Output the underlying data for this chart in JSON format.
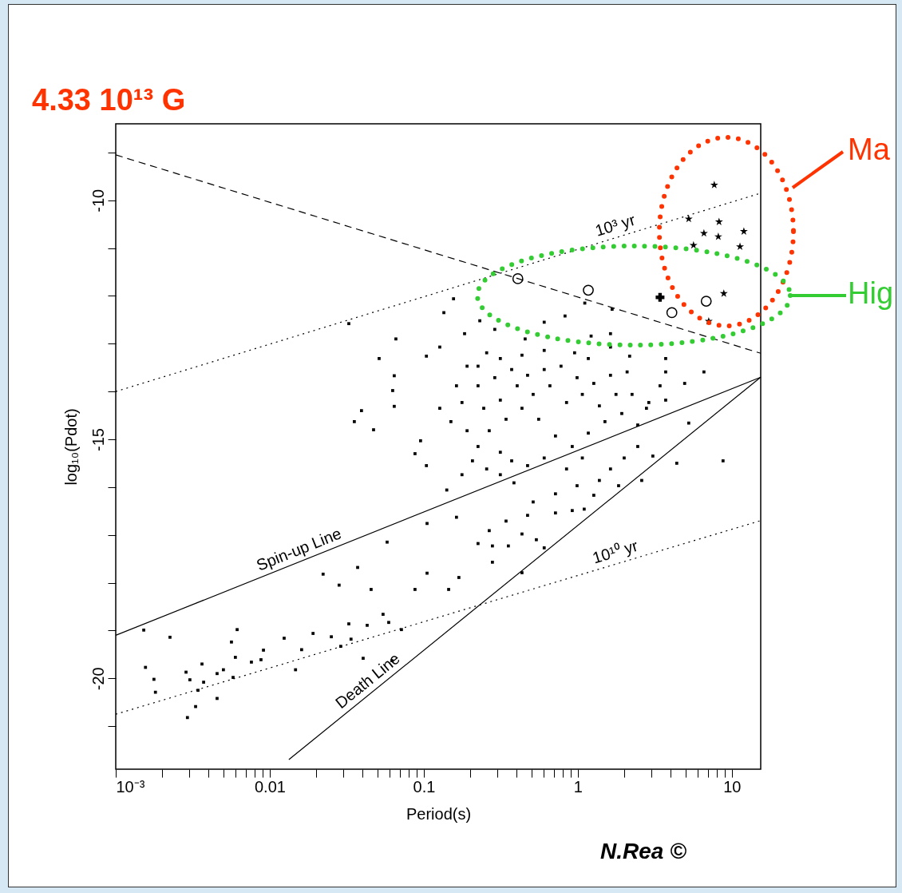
{
  "chart_data": {
    "type": "scatter",
    "xlabel": "Period(s)",
    "ylabel": "log₁₀(Pdot)",
    "log": "x",
    "xlim": [
      0.001,
      15.4
    ],
    "ylim": [
      -21.9,
      -8.4
    ],
    "xticks": [
      {
        "value": 0.001,
        "label": "10⁻³"
      },
      {
        "value": 0.002,
        "label": null
      },
      {
        "value": 0.003,
        "label": null
      },
      {
        "value": 0.004,
        "label": null
      },
      {
        "value": 0.005,
        "label": null
      },
      {
        "value": 0.006,
        "label": null
      },
      {
        "value": 0.007,
        "label": null
      },
      {
        "value": 0.008,
        "label": null
      },
      {
        "value": 0.009,
        "label": null
      },
      0.01,
      {
        "value": 0.02,
        "label": null
      },
      {
        "value": 0.03,
        "label": null
      },
      {
        "value": 0.04,
        "label": null
      },
      {
        "value": 0.05,
        "label": null
      },
      {
        "value": 0.06,
        "label": null
      },
      {
        "value": 0.07,
        "label": null
      },
      {
        "value": 0.08,
        "label": null
      },
      {
        "value": 0.09,
        "label": null
      },
      0.1,
      {
        "value": 0.2,
        "label": null
      },
      {
        "value": 0.3,
        "label": null
      },
      {
        "value": 0.4,
        "label": null
      },
      {
        "value": 0.5,
        "label": null
      },
      {
        "value": 0.6,
        "label": null
      },
      {
        "value": 0.7,
        "label": null
      },
      {
        "value": 0.8,
        "label": null
      },
      {
        "value": 0.9,
        "label": null
      },
      1,
      {
        "value": 2,
        "label": null
      },
      {
        "value": 3,
        "label": null
      },
      {
        "value": 4,
        "label": null
      },
      {
        "value": 5,
        "label": null
      },
      {
        "value": 6,
        "label": null
      },
      {
        "value": 7,
        "label": null
      },
      {
        "value": 8,
        "label": null
      },
      {
        "value": 9,
        "label": null
      },
      10
    ],
    "yticks": [
      {
        "value": -9,
        "label": null
      },
      -10,
      {
        "value": -11,
        "label": null
      },
      {
        "value": -12,
        "label": null
      },
      {
        "value": -13,
        "label": null
      },
      {
        "value": -14,
        "label": null
      },
      -15,
      {
        "value": -16,
        "label": null
      },
      {
        "value": -17,
        "label": null
      },
      {
        "value": -18,
        "label": null
      },
      {
        "value": -19,
        "label": null
      },
      -20,
      {
        "value": -21,
        "label": null
      }
    ],
    "series": [
      {
        "type": "scatter",
        "marker": "square",
        "color": "#000000",
        "x": [
          0.105,
          0.163,
          0.0578,
          0.0372,
          0.0222,
          0.0282,
          0.0455,
          0.0877,
          0.145,
          0.105,
          0.169,
          0.0326,
          0.0429,
          0.0544,
          0.0592,
          0.0716,
          0.0251,
          0.0337,
          0.0191,
          0.0124,
          0.0289,
          0.0161,
          0.0404,
          0.0147,
          0.0091,
          0.0076,
          0.00877,
          0.00614,
          0.00564,
          0.00598,
          0.00578,
          0.005,
          0.00455,
          0.00372,
          0.00342,
          0.00363,
          0.00286,
          0.00303,
          0.0033,
          0.00292,
          0.00455,
          0.00181,
          0.00177,
          0.00156,
          0.00152,
          0.00225,
          0.434,
          0.279,
          0.0621,
          0.135,
          0.826,
          0.605,
          0.231,
          0.0659,
          0.0513,
          0.0326,
          0.0643,
          0.0628,
          0.0394,
          0.0354,
          0.0472,
          0.0643,
          0.0877,
          0.104,
          0.0953,
          0.127,
          0.104,
          0.127,
          0.184,
          0.191,
          0.163,
          0.191,
          0.207,
          0.141,
          0.279,
          0.354,
          0.225,
          0.266,
          0.434,
          0.538,
          0.605,
          0.342,
          0.472,
          0.716,
          0.92,
          1.1,
          1.27,
          1.84,
          2.6,
          4.39,
          8.77,
          5.25,
          3.07,
          2.45,
          2.0,
          1.63,
          1.38,
          0.989,
          0.716,
          0.513,
          0.385,
          0.314,
          0.256,
          0.314,
          0.266,
          0.342,
          0.434,
          0.557,
          0.716,
          0.92,
          1.17,
          1.5,
          1.93,
          2.45,
          2.89,
          2.25,
          1.77,
          1.38,
          1.07,
          0.845,
          0.659,
          0.513,
          0.404,
          0.314,
          0.245,
          0.225,
          0.289,
          0.372,
          0.472,
          0.605,
          0.778,
          0.989,
          1.27,
          1.63,
          2.09,
          3.72,
          4.94,
          3.42,
          2.79,
          3.72,
          1.17,
          0.953,
          0.605,
          0.434,
          0.314,
          0.256,
          0.225,
          1.63,
          2.17,
          1.63,
          1.22,
          6.59,
          0.455,
          3.72,
          0.177,
          0.472,
          0.845,
          1.07,
          0.605,
          0.372,
          0.225,
          0.177,
          0.15,
          1.11,
          0.289,
          1.67,
          0.156
        ],
        "values": [
          -16.76,
          -16.63,
          -17.15,
          -17.68,
          -17.82,
          -18.05,
          -18.14,
          -18.14,
          -18.14,
          -17.8,
          -17.89,
          -18.86,
          -18.89,
          -18.66,
          -18.83,
          -18.98,
          -19.13,
          -19.18,
          -19.06,
          -19.16,
          -19.33,
          -19.4,
          -19.58,
          -19.82,
          -19.41,
          -19.66,
          -19.61,
          -18.98,
          -19.24,
          -19.56,
          -19.98,
          -19.82,
          -19.9,
          -20.08,
          -20.25,
          -19.7,
          -19.87,
          -20.03,
          -20.59,
          -20.82,
          -20.42,
          -20.29,
          -20.02,
          -19.77,
          -18.99,
          -19.14,
          -17.79,
          -17.57,
          -19.63,
          -12.35,
          -12.42,
          -12.55,
          -12.52,
          -12.9,
          -13.31,
          -12.58,
          -13.67,
          -13.98,
          -14.4,
          -14.63,
          -14.8,
          -14.31,
          -15.3,
          -15.55,
          -15.03,
          -14.35,
          -13.26,
          -13.07,
          -12.79,
          -13.47,
          -13.88,
          -14.82,
          -15.45,
          -16.06,
          -17.23,
          -17.23,
          -17.18,
          -16.91,
          -16.98,
          -17.1,
          -17.27,
          -16.71,
          -16.59,
          -16.54,
          -16.49,
          -16.46,
          -16.17,
          -15.97,
          -15.86,
          -15.5,
          -15.45,
          -14.66,
          -15.35,
          -15.15,
          -15.39,
          -15.62,
          -15.86,
          -15.97,
          -16.14,
          -16.31,
          -15.91,
          -15.74,
          -15.62,
          -15.27,
          -14.82,
          -14.58,
          -14.35,
          -14.58,
          -14.93,
          -15.15,
          -14.87,
          -14.63,
          -14.46,
          -14.7,
          -14.23,
          -14.06,
          -14.06,
          -14.3,
          -14.06,
          -14.23,
          -13.88,
          -14.06,
          -13.88,
          -14.18,
          -14.35,
          -13.88,
          -13.71,
          -13.54,
          -13.66,
          -13.54,
          -13.47,
          -13.71,
          -13.83,
          -13.66,
          -13.59,
          -13.59,
          -13.83,
          -13.88,
          -14.35,
          -14.18,
          -13.31,
          -13.19,
          -13.14,
          -13.24,
          -13.31,
          -13.19,
          -13.47,
          -13.07,
          -13.26,
          -12.79,
          -12.84,
          -13.59,
          -12.9,
          -13.31,
          -15.74,
          -15.55,
          -15.62,
          -15.39,
          -15.39,
          -15.45,
          -15.15,
          -14.23,
          -14.63,
          -12.15,
          -12.7,
          -12.28,
          -12.06
        ]
      },
      {
        "type": "scatter",
        "marker": "star",
        "color": "#000000",
        "x": [
          7.69,
          5.25,
          8.26,
          6.59,
          8.17,
          11.97,
          5.64,
          11.3,
          8.87,
          7.08
        ],
        "values": [
          -9.68,
          -10.39,
          -10.45,
          -10.69,
          -10.76,
          -10.65,
          -10.94,
          -10.97,
          -11.95,
          -12.53
        ]
      },
      {
        "type": "scatter",
        "marker": "circle",
        "color": "#000000",
        "x": [
          0.408,
          1.17,
          4.08,
          6.82
        ],
        "values": [
          -11.64,
          -11.88,
          -12.35,
          -12.11
        ]
      },
      {
        "type": "scatter",
        "marker": "cross",
        "color": "#000000",
        "x": [
          3.42
        ],
        "values": [
          -12.03
        ]
      },
      {
        "type": "line",
        "line_style": "dashed",
        "color": "#000000",
        "x": [
          0.001,
          15.4
        ],
        "values": [
          -9.05,
          -13.2
        ]
      },
      {
        "type": "line",
        "line_style": "dotted",
        "color": "#000000",
        "x": [
          0.001,
          15.4
        ],
        "values": [
          -14.0,
          -9.85
        ]
      },
      {
        "type": "line",
        "line_style": "dotted",
        "color": "#000000",
        "x": [
          0.001,
          15.4
        ],
        "values": [
          -20.75,
          -16.7
        ]
      },
      {
        "type": "line",
        "line_style": "solid",
        "color": "#000000",
        "x": [
          0.001,
          15.4
        ],
        "values": [
          -19.1,
          -13.7
        ]
      },
      {
        "type": "line",
        "line_style": "solid",
        "color": "#000000",
        "x": [
          0.0133,
          15.4
        ],
        "values": [
          -21.7,
          -13.7
        ]
      }
    ],
    "annotations": [
      "4.33 10¹³ G",
      "Ma",
      "Hig",
      "N.Rea ©",
      {
        "text": "10³ yr",
        "x": 1.84,
        "y": -10.76
      },
      {
        "text": "10¹⁰ yr",
        "x": 1.84,
        "y": -17.59
      },
      {
        "text": "Spin-up Line",
        "x": 0.0165,
        "y": -17.53
      },
      {
        "text": "Death Line",
        "x": 0.0483,
        "y": -20.24
      }
    ]
  }
}
